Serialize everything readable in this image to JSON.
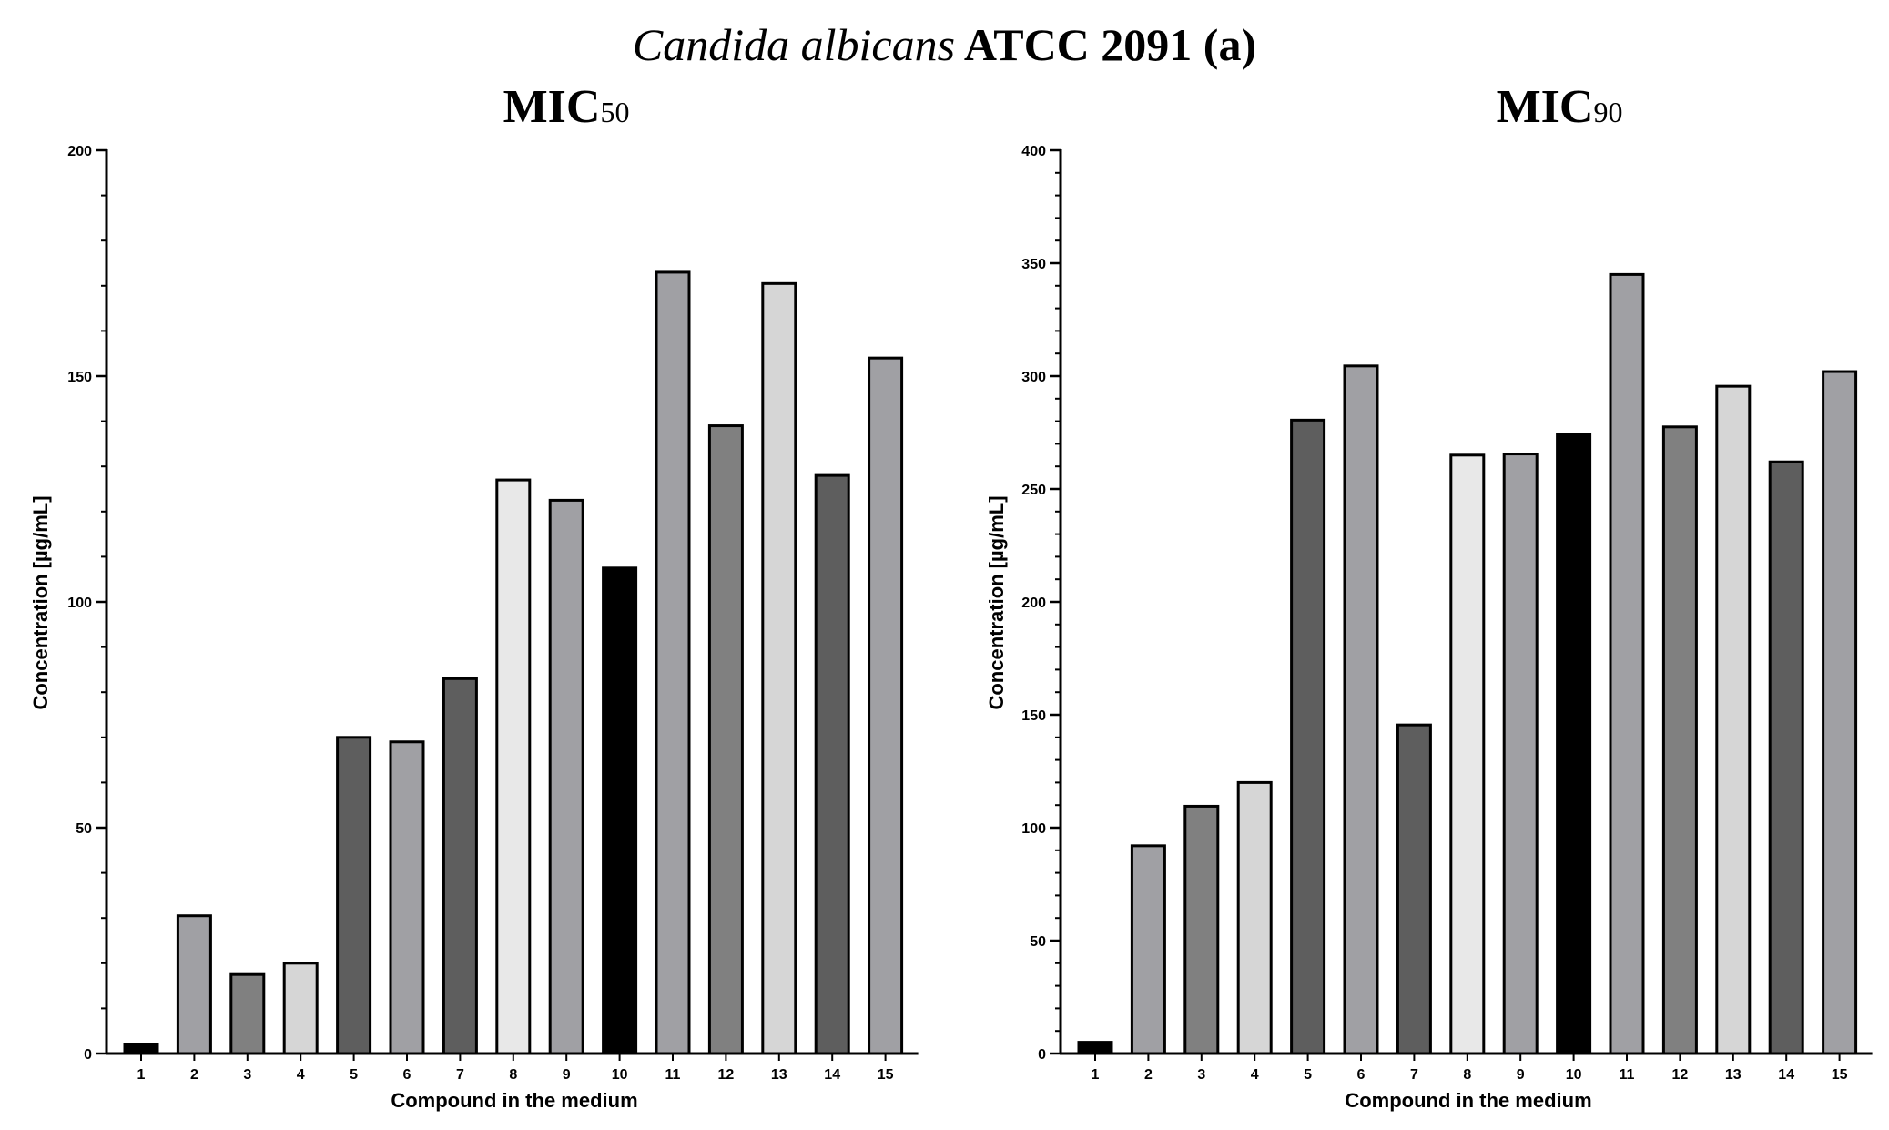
{
  "figure": {
    "title_species": "Candida albicans",
    "title_rest": "ATCC 2091 (a)"
  },
  "chart_data": [
    {
      "type": "bar",
      "title_main": "MIC",
      "title_sub": "50",
      "xlabel": "Compound in the medium",
      "ylabel": "Concentration [µg/mL]",
      "categories": [
        "1",
        "2",
        "3",
        "4",
        "5",
        "6",
        "7",
        "8",
        "9",
        "10",
        "11",
        "12",
        "13",
        "14",
        "15"
      ],
      "values": [
        2,
        30.5,
        17.5,
        20,
        70,
        69,
        83,
        127,
        122.5,
        107.5,
        173,
        139,
        170.5,
        128,
        154
      ],
      "ylim": [
        0,
        200
      ],
      "yticks": [
        0,
        50,
        100,
        150,
        200
      ],
      "y_minor_step": 10,
      "bar_colors": [
        "#000000",
        "#a0a0a4",
        "#808080",
        "#d6d6d6",
        "#5e5e5e",
        "#a0a0a4",
        "#5e5e5e",
        "#e8e8e8",
        "#a0a0a4",
        "#000000",
        "#a0a0a4",
        "#808080",
        "#d6d6d6",
        "#5e5e5e",
        "#a0a0a4"
      ]
    },
    {
      "type": "bar",
      "title_main": "MIC",
      "title_sub": "90",
      "xlabel": "Compound in the medium",
      "ylabel": "Concentration [µg/mL]",
      "categories": [
        "1",
        "2",
        "3",
        "4",
        "5",
        "6",
        "7",
        "8",
        "9",
        "10",
        "11",
        "12",
        "13",
        "14",
        "15"
      ],
      "values": [
        5,
        92,
        109.5,
        120,
        280.5,
        304.5,
        145.5,
        265,
        265.5,
        274,
        345,
        277.5,
        295.5,
        262,
        302
      ],
      "ylim": [
        0,
        400
      ],
      "yticks": [
        0,
        50,
        100,
        150,
        200,
        250,
        300,
        350,
        400
      ],
      "y_minor_step": 10,
      "bar_colors": [
        "#000000",
        "#a0a0a4",
        "#808080",
        "#d6d6d6",
        "#5e5e5e",
        "#a0a0a4",
        "#5e5e5e",
        "#e8e8e8",
        "#a0a0a4",
        "#000000",
        "#a0a0a4",
        "#808080",
        "#d6d6d6",
        "#5e5e5e",
        "#a0a0a4"
      ]
    }
  ]
}
